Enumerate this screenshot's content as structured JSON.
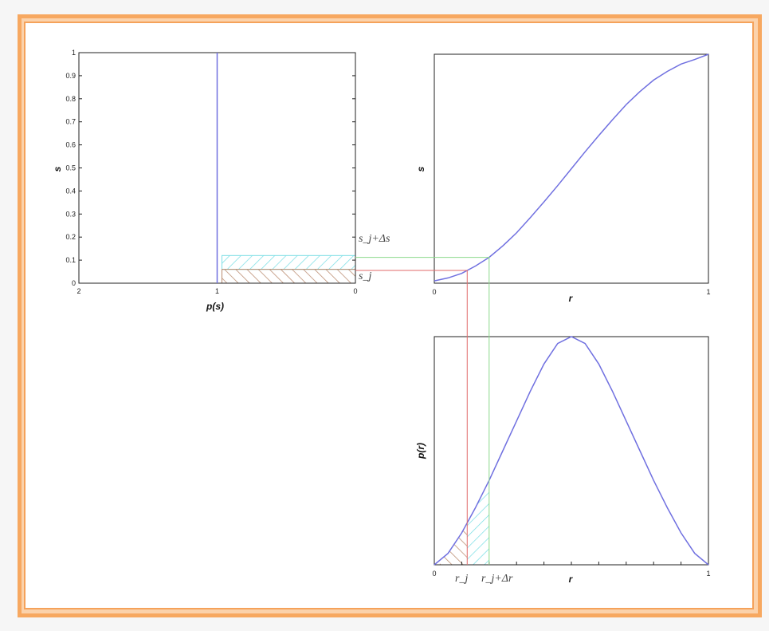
{
  "colors": {
    "curve": "#7070e0",
    "red_line": "#e06a6a",
    "green_line": "#8cd98c",
    "cyan_hatch": "#7ddfe6",
    "brown_hatch": "#b98a6e",
    "frame": "#f7a860"
  },
  "annotations": {
    "sj_plus_ds": "s_j+Δs",
    "sj": "s_j",
    "rj": "r_j",
    "rj_plus_dr": "r_j+Δr"
  },
  "chart_data": [
    {
      "type": "line",
      "panel": "p(s)",
      "xlabel": "p(s)",
      "ylabel": "s",
      "x_ticks": [
        "2",
        "1",
        "0"
      ],
      "y_ticks": [
        "0",
        "0.1",
        "0.2",
        "0.3",
        "0.4",
        "0.5",
        "0.6",
        "0.7",
        "0.8",
        "0.9",
        "1"
      ],
      "xlim": [
        2,
        0
      ],
      "ylim": [
        0,
        1
      ],
      "series": [
        {
          "x": [
            1,
            1
          ],
          "y": [
            0,
            1
          ]
        }
      ],
      "bands": [
        {
          "color": "cyan",
          "y_range": [
            0.06,
            0.12
          ]
        },
        {
          "color": "brown",
          "y_range": [
            0.0,
            0.06
          ]
        }
      ]
    },
    {
      "type": "line",
      "panel": "s(r)",
      "xlabel": "r",
      "ylabel": "s",
      "x_ticks": [
        "0",
        "1"
      ],
      "xlim": [
        0,
        1
      ],
      "ylim": [
        0,
        1
      ],
      "series": [
        {
          "x": [
            0,
            0.05,
            0.1,
            0.15,
            0.2,
            0.25,
            0.3,
            0.35,
            0.4,
            0.45,
            0.5,
            0.55,
            0.6,
            0.65,
            0.7,
            0.75,
            0.8,
            0.85,
            0.9,
            0.95,
            1
          ],
          "y": [
            0.01,
            0.023,
            0.043,
            0.075,
            0.113,
            0.163,
            0.22,
            0.286,
            0.355,
            0.426,
            0.5,
            0.574,
            0.645,
            0.714,
            0.78,
            0.837,
            0.887,
            0.925,
            0.957,
            0.977,
            1
          ]
        }
      ],
      "markers": {
        "r_j": 0.12,
        "r_j_plus_dr": 0.2
      }
    },
    {
      "type": "line",
      "panel": "p(r)",
      "xlabel": "r",
      "ylabel": "p(r)",
      "x_ticks": [
        "0",
        "1"
      ],
      "xlim": [
        0,
        1
      ],
      "ylim": [
        0,
        1
      ],
      "series": [
        {
          "x": [
            0,
            0.05,
            0.1,
            0.15,
            0.2,
            0.25,
            0.3,
            0.35,
            0.4,
            0.45,
            0.5,
            0.55,
            0.6,
            0.65,
            0.7,
            0.75,
            0.8,
            0.85,
            0.9,
            0.95,
            1
          ],
          "y": [
            0.0,
            0.05,
            0.14,
            0.25,
            0.37,
            0.5,
            0.63,
            0.76,
            0.88,
            0.97,
            1.0,
            0.97,
            0.88,
            0.76,
            0.63,
            0.5,
            0.37,
            0.25,
            0.14,
            0.05,
            0.0
          ]
        }
      ],
      "hatched_regions": [
        {
          "color": "brown",
          "x_range": [
            0.02,
            0.12
          ]
        },
        {
          "color": "cyan",
          "x_range": [
            0.12,
            0.2
          ]
        }
      ]
    }
  ]
}
